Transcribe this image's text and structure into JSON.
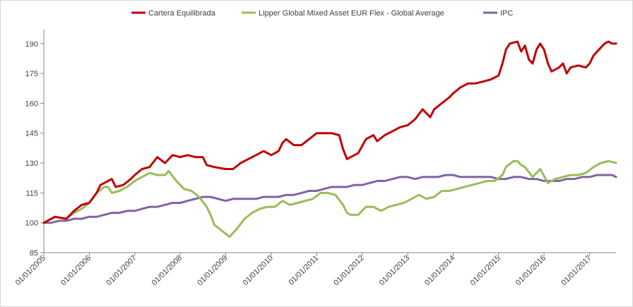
{
  "chart_data": {
    "type": "line",
    "title": "",
    "xlabel": "",
    "ylabel": "",
    "x_axis": {
      "type": "date",
      "range": [
        "2005-01-01",
        "2017-08-01"
      ],
      "tick_labels": [
        "01/01/2005",
        "01/01/2006",
        "01/01/2007",
        "01/01/2008",
        "01/01/2009",
        "01/01/2010",
        "01/01/2011",
        "01/01/2012",
        "01/01/2013",
        "01/01/2014",
        "01/01/2015",
        "01/01/2016",
        "01/01/2017"
      ],
      "tick_dates": [
        "2005-01-01",
        "2006-01-01",
        "2007-01-01",
        "2008-01-01",
        "2009-01-01",
        "2010-01-01",
        "2011-01-01",
        "2012-01-01",
        "2013-01-01",
        "2014-01-01",
        "2015-01-01",
        "2016-01-01",
        "2017-01-01"
      ]
    },
    "y_axis": {
      "ylim": [
        85,
        197
      ],
      "ticks": [
        85,
        100,
        115,
        130,
        145,
        160,
        175,
        190
      ],
      "gridlines": false
    },
    "legend_position": "top",
    "series": [
      {
        "name": "Cartera Equilibrada",
        "color": "#C00000",
        "points": [
          [
            "2005-01-01",
            100
          ],
          [
            "2005-04-01",
            103
          ],
          [
            "2005-07-01",
            102
          ],
          [
            "2005-09-01",
            106
          ],
          [
            "2005-11-01",
            109
          ],
          [
            "2006-01-01",
            110
          ],
          [
            "2006-03-01",
            115
          ],
          [
            "2006-04-01",
            119
          ],
          [
            "2006-06-01",
            121
          ],
          [
            "2006-07-01",
            122
          ],
          [
            "2006-08-01",
            118
          ],
          [
            "2006-10-01",
            119
          ],
          [
            "2006-12-01",
            122
          ],
          [
            "2007-01-01",
            124
          ],
          [
            "2007-03-01",
            127
          ],
          [
            "2007-05-01",
            128
          ],
          [
            "2007-07-01",
            133
          ],
          [
            "2007-09-01",
            130
          ],
          [
            "2007-11-01",
            134
          ],
          [
            "2008-01-01",
            133
          ],
          [
            "2008-03-01",
            134
          ],
          [
            "2008-05-01",
            133
          ],
          [
            "2008-07-01",
            133
          ],
          [
            "2008-08-01",
            129
          ],
          [
            "2008-10-01",
            128
          ],
          [
            "2009-01-01",
            127
          ],
          [
            "2009-03-01",
            127
          ],
          [
            "2009-05-01",
            130
          ],
          [
            "2009-07-01",
            132
          ],
          [
            "2009-09-01",
            134
          ],
          [
            "2009-11-01",
            136
          ],
          [
            "2010-01-01",
            134
          ],
          [
            "2010-03-01",
            136
          ],
          [
            "2010-04-01",
            140
          ],
          [
            "2010-05-01",
            142
          ],
          [
            "2010-07-01",
            139
          ],
          [
            "2010-09-01",
            139
          ],
          [
            "2010-11-01",
            142
          ],
          [
            "2011-01-01",
            145
          ],
          [
            "2011-03-01",
            145
          ],
          [
            "2011-05-01",
            145
          ],
          [
            "2011-07-01",
            144
          ],
          [
            "2011-08-01",
            137
          ],
          [
            "2011-09-01",
            132
          ],
          [
            "2011-10-01",
            133
          ],
          [
            "2011-12-01",
            135
          ],
          [
            "2012-02-01",
            142
          ],
          [
            "2012-04-01",
            144
          ],
          [
            "2012-05-01",
            141
          ],
          [
            "2012-07-01",
            144
          ],
          [
            "2012-09-01",
            146
          ],
          [
            "2012-11-01",
            148
          ],
          [
            "2013-01-01",
            149
          ],
          [
            "2013-03-01",
            152
          ],
          [
            "2013-05-01",
            157
          ],
          [
            "2013-07-01",
            153
          ],
          [
            "2013-08-01",
            157
          ],
          [
            "2013-10-01",
            160
          ],
          [
            "2013-12-01",
            163
          ],
          [
            "2014-01-01",
            165
          ],
          [
            "2014-03-01",
            168
          ],
          [
            "2014-05-01",
            170
          ],
          [
            "2014-07-01",
            170
          ],
          [
            "2014-09-01",
            171
          ],
          [
            "2014-11-01",
            172
          ],
          [
            "2015-01-01",
            174
          ],
          [
            "2015-02-01",
            180
          ],
          [
            "2015-03-01",
            187
          ],
          [
            "2015-04-01",
            190
          ],
          [
            "2015-06-01",
            191
          ],
          [
            "2015-07-01",
            186
          ],
          [
            "2015-08-01",
            189
          ],
          [
            "2015-09-01",
            182
          ],
          [
            "2015-10-01",
            180
          ],
          [
            "2015-11-01",
            187
          ],
          [
            "2015-12-01",
            190
          ],
          [
            "2016-01-01",
            187
          ],
          [
            "2016-02-01",
            180
          ],
          [
            "2016-03-01",
            176
          ],
          [
            "2016-05-01",
            178
          ],
          [
            "2016-06-01",
            180
          ],
          [
            "2016-07-01",
            175
          ],
          [
            "2016-08-01",
            178
          ],
          [
            "2016-10-01",
            179
          ],
          [
            "2016-12-01",
            178
          ],
          [
            "2017-01-01",
            180
          ],
          [
            "2017-02-01",
            184
          ],
          [
            "2017-04-01",
            188
          ],
          [
            "2017-05-01",
            190
          ],
          [
            "2017-06-01",
            191
          ],
          [
            "2017-07-01",
            190
          ],
          [
            "2017-08-01",
            190
          ]
        ]
      },
      {
        "name": "Lipper Global Mixed Asset EUR Flex - Global Average",
        "color": "#9BBB59",
        "points": [
          [
            "2005-01-01",
            100
          ],
          [
            "2005-04-01",
            103
          ],
          [
            "2005-07-01",
            102
          ],
          [
            "2005-09-01",
            105
          ],
          [
            "2005-11-01",
            107
          ],
          [
            "2006-01-01",
            110
          ],
          [
            "2006-03-01",
            115
          ],
          [
            "2006-05-01",
            118
          ],
          [
            "2006-06-01",
            118
          ],
          [
            "2006-07-01",
            115
          ],
          [
            "2006-09-01",
            116
          ],
          [
            "2006-11-01",
            118
          ],
          [
            "2007-01-01",
            121
          ],
          [
            "2007-03-01",
            123
          ],
          [
            "2007-05-01",
            125
          ],
          [
            "2007-07-01",
            124
          ],
          [
            "2007-09-01",
            124
          ],
          [
            "2007-10-01",
            126
          ],
          [
            "2007-12-01",
            121
          ],
          [
            "2008-02-01",
            117
          ],
          [
            "2008-04-01",
            116
          ],
          [
            "2008-06-01",
            113
          ],
          [
            "2008-08-01",
            108
          ],
          [
            "2008-09-01",
            104
          ],
          [
            "2008-10-01",
            99
          ],
          [
            "2008-12-01",
            96
          ],
          [
            "2009-02-01",
            93
          ],
          [
            "2009-04-01",
            97
          ],
          [
            "2009-06-01",
            102
          ],
          [
            "2009-08-01",
            105
          ],
          [
            "2009-10-01",
            107
          ],
          [
            "2009-12-01",
            108
          ],
          [
            "2010-02-01",
            108
          ],
          [
            "2010-04-01",
            111
          ],
          [
            "2010-06-01",
            109
          ],
          [
            "2010-08-01",
            110
          ],
          [
            "2010-10-01",
            111
          ],
          [
            "2010-12-01",
            112
          ],
          [
            "2011-02-01",
            115
          ],
          [
            "2011-04-01",
            115
          ],
          [
            "2011-06-01",
            114
          ],
          [
            "2011-08-01",
            109
          ],
          [
            "2011-09-01",
            105
          ],
          [
            "2011-10-01",
            104
          ],
          [
            "2011-12-01",
            104
          ],
          [
            "2012-02-01",
            108
          ],
          [
            "2012-04-01",
            108
          ],
          [
            "2012-06-01",
            106
          ],
          [
            "2012-08-01",
            108
          ],
          [
            "2012-10-01",
            109
          ],
          [
            "2012-12-01",
            110
          ],
          [
            "2013-02-01",
            112
          ],
          [
            "2013-04-01",
            114
          ],
          [
            "2013-06-01",
            112
          ],
          [
            "2013-08-01",
            113
          ],
          [
            "2013-10-01",
            116
          ],
          [
            "2013-12-01",
            116
          ],
          [
            "2014-02-01",
            117
          ],
          [
            "2014-04-01",
            118
          ],
          [
            "2014-06-01",
            119
          ],
          [
            "2014-08-01",
            120
          ],
          [
            "2014-10-01",
            121
          ],
          [
            "2014-12-01",
            121
          ],
          [
            "2015-02-01",
            124
          ],
          [
            "2015-03-01",
            128
          ],
          [
            "2015-05-01",
            131
          ],
          [
            "2015-06-01",
            131
          ],
          [
            "2015-07-01",
            129
          ],
          [
            "2015-08-01",
            128
          ],
          [
            "2015-10-01",
            123
          ],
          [
            "2015-12-01",
            127
          ],
          [
            "2016-02-01",
            120
          ],
          [
            "2016-04-01",
            122
          ],
          [
            "2016-06-01",
            123
          ],
          [
            "2016-08-01",
            124
          ],
          [
            "2016-10-01",
            124
          ],
          [
            "2016-12-01",
            125
          ],
          [
            "2017-02-01",
            128
          ],
          [
            "2017-04-01",
            130
          ],
          [
            "2017-06-01",
            131
          ],
          [
            "2017-08-01",
            130
          ]
        ]
      },
      {
        "name": "IPC",
        "color": "#8064A2",
        "points": [
          [
            "2005-01-01",
            100
          ],
          [
            "2005-03-01",
            100
          ],
          [
            "2005-05-01",
            101
          ],
          [
            "2005-07-01",
            101
          ],
          [
            "2005-09-01",
            102
          ],
          [
            "2005-11-01",
            102
          ],
          [
            "2006-01-01",
            103
          ],
          [
            "2006-03-01",
            103
          ],
          [
            "2006-05-01",
            104
          ],
          [
            "2006-07-01",
            105
          ],
          [
            "2006-09-01",
            105
          ],
          [
            "2006-11-01",
            106
          ],
          [
            "2007-01-01",
            106
          ],
          [
            "2007-03-01",
            107
          ],
          [
            "2007-05-01",
            108
          ],
          [
            "2007-07-01",
            108
          ],
          [
            "2007-09-01",
            109
          ],
          [
            "2007-11-01",
            110
          ],
          [
            "2008-01-01",
            110
          ],
          [
            "2008-03-01",
            111
          ],
          [
            "2008-05-01",
            112
          ],
          [
            "2008-07-01",
            113
          ],
          [
            "2008-09-01",
            113
          ],
          [
            "2008-11-01",
            112
          ],
          [
            "2009-01-01",
            111
          ],
          [
            "2009-03-01",
            112
          ],
          [
            "2009-05-01",
            112
          ],
          [
            "2009-07-01",
            112
          ],
          [
            "2009-09-01",
            112
          ],
          [
            "2009-11-01",
            113
          ],
          [
            "2010-01-01",
            113
          ],
          [
            "2010-03-01",
            113
          ],
          [
            "2010-05-01",
            114
          ],
          [
            "2010-07-01",
            114
          ],
          [
            "2010-09-01",
            115
          ],
          [
            "2010-11-01",
            116
          ],
          [
            "2011-01-01",
            116
          ],
          [
            "2011-03-01",
            117
          ],
          [
            "2011-05-01",
            118
          ],
          [
            "2011-07-01",
            118
          ],
          [
            "2011-09-01",
            118
          ],
          [
            "2011-11-01",
            119
          ],
          [
            "2012-01-01",
            119
          ],
          [
            "2012-03-01",
            120
          ],
          [
            "2012-05-01",
            121
          ],
          [
            "2012-07-01",
            121
          ],
          [
            "2012-09-01",
            122
          ],
          [
            "2012-11-01",
            123
          ],
          [
            "2013-01-01",
            123
          ],
          [
            "2013-03-01",
            122
          ],
          [
            "2013-05-01",
            123
          ],
          [
            "2013-07-01",
            123
          ],
          [
            "2013-09-01",
            123
          ],
          [
            "2013-11-01",
            124
          ],
          [
            "2014-01-01",
            124
          ],
          [
            "2014-03-01",
            123
          ],
          [
            "2014-05-01",
            123
          ],
          [
            "2014-07-01",
            123
          ],
          [
            "2014-09-01",
            123
          ],
          [
            "2014-11-01",
            123
          ],
          [
            "2015-01-01",
            122
          ],
          [
            "2015-03-01",
            122
          ],
          [
            "2015-05-01",
            123
          ],
          [
            "2015-07-01",
            123
          ],
          [
            "2015-09-01",
            122
          ],
          [
            "2015-11-01",
            122
          ],
          [
            "2016-01-01",
            121
          ],
          [
            "2016-03-01",
            121
          ],
          [
            "2016-05-01",
            121
          ],
          [
            "2016-07-01",
            122
          ],
          [
            "2016-09-01",
            122
          ],
          [
            "2016-11-01",
            123
          ],
          [
            "2017-01-01",
            123
          ],
          [
            "2017-03-01",
            124
          ],
          [
            "2017-05-01",
            124
          ],
          [
            "2017-07-01",
            124
          ],
          [
            "2017-08-01",
            123
          ]
        ]
      }
    ]
  }
}
